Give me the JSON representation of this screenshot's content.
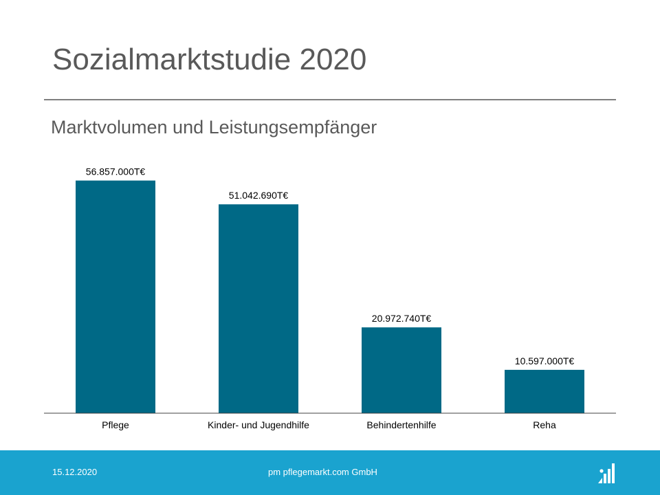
{
  "slide": {
    "title": "Sozialmarktstudie 2020",
    "subtitle": "Marktvolumen und Leistungsempfänger"
  },
  "footer": {
    "date": "15.12.2020",
    "company": "pm pflegemarkt.com GmbH",
    "logo_icon": "pflegemarkt-logo-icon"
  },
  "colors": {
    "bar": "#006986",
    "footer_bg": "#1aa3cf",
    "title": "#595959"
  },
  "chart_data": {
    "type": "bar",
    "title": "",
    "xlabel": "",
    "ylabel": "",
    "categories": [
      "Pflege",
      "Kinder- und Jugendhilfe",
      "Behindertenhilfe",
      "Reha"
    ],
    "values": [
      56857000,
      51042690,
      20972740,
      10597000
    ],
    "data_labels": [
      "56.857.000T€",
      "51.042.690T€",
      "20.972.740T€",
      "10.597.000T€"
    ],
    "unit": "T€",
    "ylim": [
      0,
      62000000
    ],
    "grid": false,
    "legend": "none"
  }
}
